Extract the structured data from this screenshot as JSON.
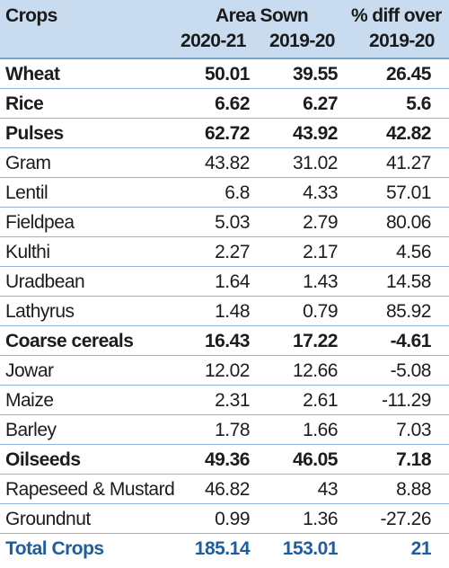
{
  "headers": {
    "crops": "Crops",
    "area_sown": "Area Sown",
    "pct_diff": "% diff over",
    "year1": "2020-21",
    "year2": "2019-20",
    "year3": "2019-20"
  },
  "rows": [
    {
      "name": "Wheat",
      "a": "50.01",
      "b": "39.55",
      "c": "26.45",
      "bold": true
    },
    {
      "name": "Rice",
      "a": "6.62",
      "b": "6.27",
      "c": "5.6",
      "bold": true
    },
    {
      "name": "Pulses",
      "a": "62.72",
      "b": "43.92",
      "c": "42.82",
      "bold": true
    },
    {
      "name": "Gram",
      "a": "43.82",
      "b": "31.02",
      "c": "41.27",
      "bold": false
    },
    {
      "name": "Lentil",
      "a": "6.8",
      "b": "4.33",
      "c": "57.01",
      "bold": false
    },
    {
      "name": "Fieldpea",
      "a": "5.03",
      "b": "2.79",
      "c": "80.06",
      "bold": false
    },
    {
      "name": "Kulthi",
      "a": "2.27",
      "b": "2.17",
      "c": "4.56",
      "bold": false
    },
    {
      "name": "Uradbean",
      "a": "1.64",
      "b": "1.43",
      "c": "14.58",
      "bold": false
    },
    {
      "name": "Lathyrus",
      "a": "1.48",
      "b": "0.79",
      "c": "85.92",
      "bold": false
    },
    {
      "name": "Coarse cereals",
      "a": "16.43",
      "b": "17.22",
      "c": "-4.61",
      "bold": true
    },
    {
      "name": "Jowar",
      "a": "12.02",
      "b": "12.66",
      "c": "-5.08",
      "bold": false
    },
    {
      "name": "Maize",
      "a": "2.31",
      "b": "2.61",
      "c": "-11.29",
      "bold": false
    },
    {
      "name": "Barley",
      "a": "1.78",
      "b": "1.66",
      "c": "7.03",
      "bold": false
    },
    {
      "name": "Oilseeds",
      "a": "49.36",
      "b": "46.05",
      "c": "7.18",
      "bold": true
    },
    {
      "name": "Rapeseed & Mustard",
      "a": "46.82",
      "b": "43",
      "c": "8.88",
      "bold": false
    },
    {
      "name": "Groundnut",
      "a": "0.99",
      "b": "1.36",
      "c": "-27.26",
      "bold": false
    },
    {
      "name": "Total Crops",
      "a": "185.14",
      "b": "153.01",
      "c": "21",
      "bold": true
    }
  ],
  "colors": {
    "header_bg": "#c9dbef",
    "row_divider": "#8fb4dd",
    "total_text": "#1f5d9e"
  }
}
